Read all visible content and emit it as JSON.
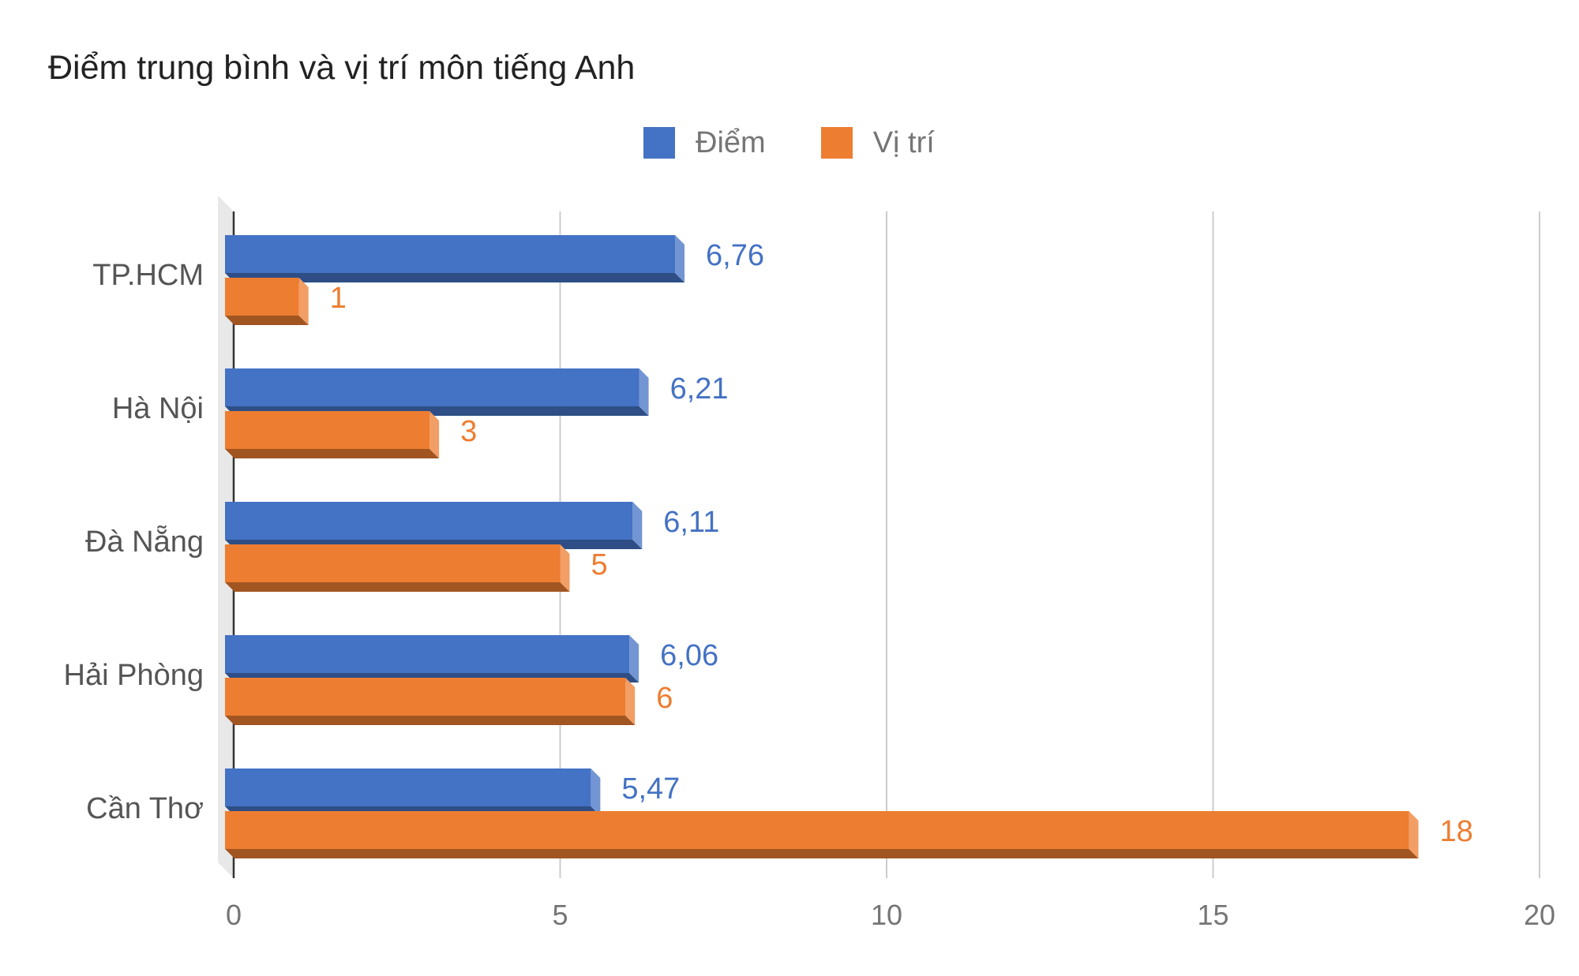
{
  "chart_data": {
    "type": "bar",
    "orientation": "horizontal",
    "title": "Điểm trung bình và vị trí môn tiếng Anh",
    "categories": [
      "TP.HCM",
      "Hà Nội",
      "Đà Nẵng",
      "Hải Phòng",
      "Cần Thơ"
    ],
    "series": [
      {
        "name": "Điểm",
        "color": "#4472c4",
        "values": [
          6.76,
          6.21,
          6.11,
          6.06,
          5.47
        ],
        "labels": [
          "6,76",
          "6,21",
          "6,11",
          "6,06",
          "5,47"
        ]
      },
      {
        "name": "Vị trí",
        "color": "#ed7d31",
        "values": [
          1,
          3,
          5,
          6,
          18
        ],
        "labels": [
          "1",
          "3",
          "5",
          "6",
          "18"
        ]
      }
    ],
    "xlim": [
      0,
      20
    ],
    "xticks": [
      "0",
      "5",
      "10",
      "15",
      "20"
    ],
    "grid": true,
    "legend_position": "top",
    "style": "3d"
  }
}
